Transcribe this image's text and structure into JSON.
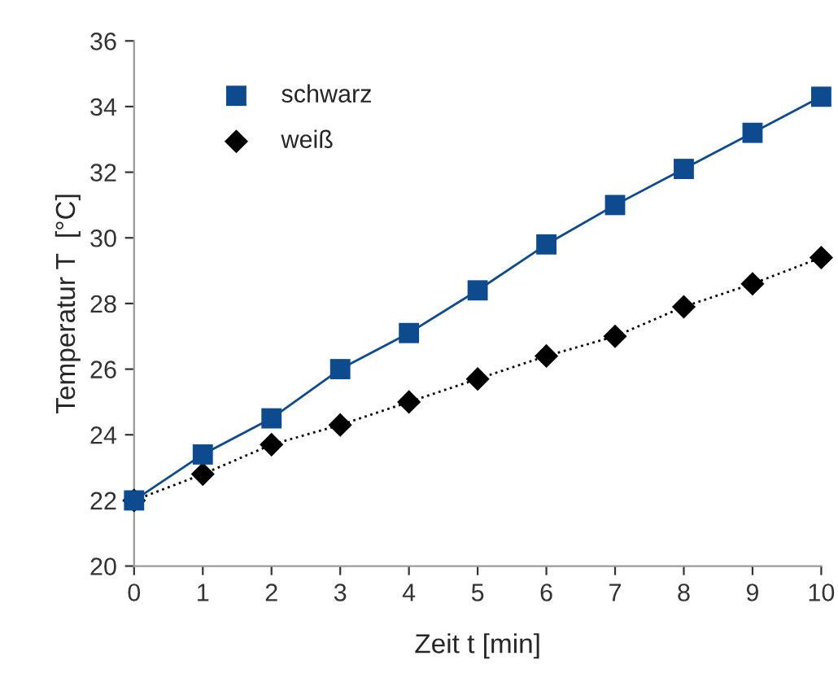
{
  "chart_data": {
    "type": "line",
    "xlabel": "Zeit t [min]",
    "ylabel": "Temperatur T  [°C]",
    "x": [
      0,
      1,
      2,
      3,
      4,
      5,
      6,
      7,
      8,
      9,
      10
    ],
    "series": [
      {
        "name": "schwarz",
        "color": "#0d4a8e",
        "marker": "square",
        "line_style": "solid",
        "values": [
          22.0,
          23.4,
          24.5,
          26.0,
          27.1,
          28.4,
          29.8,
          31.0,
          32.1,
          33.2,
          34.3
        ]
      },
      {
        "name": "weiß",
        "color": "#000000",
        "marker": "diamond",
        "line_style": "dotted",
        "values": [
          22.0,
          22.8,
          23.7,
          24.3,
          25.0,
          25.7,
          26.4,
          27.0,
          27.9,
          28.6,
          29.4
        ]
      }
    ],
    "xlim": [
      0,
      10
    ],
    "xticks": [
      0,
      1,
      2,
      3,
      4,
      5,
      6,
      7,
      8,
      9,
      10
    ],
    "ylim": [
      20,
      36
    ],
    "yticks": [
      20,
      22,
      24,
      26,
      28,
      30,
      32,
      34,
      36
    ],
    "grid": false,
    "legend": "top left"
  }
}
